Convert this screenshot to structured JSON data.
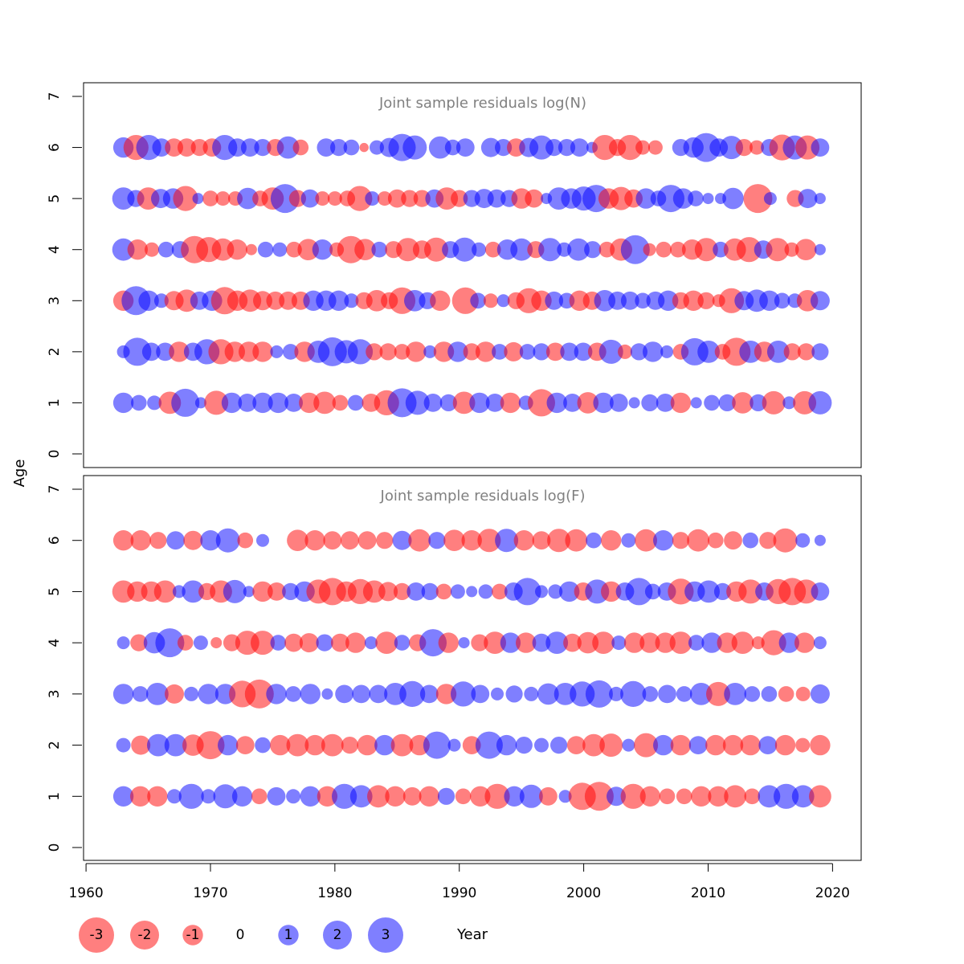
{
  "chart_data": {
    "type": "scatter",
    "y_axis_label": "Age",
    "x_axis_label": "Year",
    "x_ticks": [
      1960,
      1970,
      1980,
      1990,
      2000,
      2010,
      2020
    ],
    "y_ticks": [
      0,
      1,
      2,
      3,
      4,
      5,
      6,
      7
    ],
    "x_range": [
      1959.8,
      2022.3
    ],
    "y_range": [
      -0.3,
      7.3
    ],
    "colors": {
      "negative": "#ff0000",
      "positive": "#0000ff",
      "opacity": 0.5
    },
    "panels": [
      {
        "title": "Joint sample residuals log(N)",
        "ages": [
          1,
          2,
          3,
          4,
          5,
          6
        ],
        "years": [
          1963,
          2019
        ],
        "residuals": {
          "6": [
            1.0,
            -1.5,
            1.5,
            0.8,
            -0.8,
            -0.8,
            -0.7,
            -0.8,
            1.5,
            0.8,
            0.8,
            0.7,
            -0.7,
            1.2,
            -0.6,
            0.0,
            0.8,
            0.7,
            0.6,
            -0.2,
            0.5,
            0.9,
            1.8,
            1.4,
            0.0,
            1.2,
            0.6,
            0.8,
            0.0,
            0.9,
            0.7,
            -0.8,
            0.9,
            1.4,
            0.7,
            0.7,
            0.8,
            0.3,
            -1.5,
            -0.7,
            -1.5,
            -0.5,
            -0.5,
            0.0,
            0.7,
            1.0,
            2.0,
            0.8,
            1.3,
            -0.7,
            -0.5,
            0.7,
            -1.6,
            1.4,
            -1.4,
            0.8
          ],
          "5": [
            1.2,
            0.7,
            -1.2,
            0.9,
            1.0,
            -1.5,
            0.3,
            -0.6,
            -0.5,
            -0.5,
            1.1,
            -0.6,
            -1.2,
            2.0,
            -0.7,
            0.8,
            -0.5,
            -0.5,
            -0.6,
            -1.5,
            0.5,
            -0.5,
            -0.8,
            -0.7,
            -0.7,
            0.8,
            -1.2,
            -0.7,
            0.7,
            0.9,
            0.8,
            0.7,
            -1.0,
            -0.8,
            0.3,
            1.2,
            1.0,
            1.4,
            1.8,
            -1.0,
            -1.3,
            -0.8,
            1.0,
            0.6,
            1.8,
            1.0,
            0.6,
            0.3,
            0.3,
            1.1,
            0.0,
            -2.0,
            0.4,
            0.0,
            -0.7,
            0.9,
            0.3
          ],
          "4": [
            1.2,
            -1.0,
            -0.5,
            0.6,
            0.7,
            -1.8,
            -1.5,
            -1.2,
            -1.0,
            -0.3,
            0.6,
            0.5,
            -0.6,
            -1.1,
            1.0,
            -0.5,
            -1.8,
            -1.1,
            0.6,
            -0.7,
            -1.3,
            -0.8,
            -1.4,
            0.7,
            1.4,
            0.5,
            -0.6,
            1.0,
            1.2,
            -0.7,
            1.3,
            0.5,
            1.2,
            0.7,
            -0.6,
            -1.2,
            2.0,
            -0.4,
            -0.6,
            -0.6,
            -1.0,
            -1.3,
            0.6,
            -1.2,
            -1.5,
            0.8,
            -1.3,
            -0.5,
            -1.1,
            0.3
          ],
          "3": [
            -1.0,
            2.0,
            1.0,
            0.5,
            -0.9,
            -1.2,
            0.8,
            1.0,
            -1.8,
            -1.0,
            -1.2,
            -0.9,
            -0.8,
            -0.8,
            -0.8,
            1.0,
            1.0,
            1.0,
            0.5,
            -0.7,
            -1.1,
            -0.7,
            -1.7,
            1.1,
            0.7,
            -1.0,
            0.0,
            -1.7,
            0.6,
            -0.5,
            0.4,
            -0.7,
            -1.5,
            -1.0,
            0.8,
            0.6,
            -1.0,
            -0.8,
            1.1,
            0.8,
            0.8,
            0.6,
            0.8,
            1.0,
            -0.7,
            -1.0,
            -0.7,
            -0.4,
            -1.5,
            0.9,
            1.2,
            1.0,
            0.6,
            0.5,
            -1.1,
            0.9
          ],
          "2": [
            0.4,
            1.9,
            0.8,
            0.8,
            -1.0,
            0.8,
            1.5,
            -1.5,
            -1.0,
            -1.0,
            -1.0,
            0.4,
            0.6,
            -1.0,
            1.2,
            2.0,
            1.3,
            1.5,
            -0.7,
            -0.7,
            -0.6,
            -1.0,
            0.4,
            -1.0,
            1.0,
            -0.7,
            -1.0,
            0.6,
            -0.9,
            0.6,
            0.7,
            -0.8,
            0.8,
            0.8,
            -0.8,
            1.4,
            -0.5,
            0.7,
            1.0,
            0.4,
            -0.6,
            1.8,
            1.2,
            -0.6,
            -1.9,
            1.2,
            -1.0,
            1.2,
            -0.7,
            -0.7,
            0.7
          ],
          "1": [
            1.0,
            0.6,
            0.5,
            -1.2,
            1.9,
            0.3,
            -1.4,
            1.0,
            0.8,
            1.0,
            1.0,
            0.8,
            -1.0,
            -1.2,
            -0.6,
            0.6,
            -0.8,
            -1.5,
            2.0,
            1.4,
            0.8,
            0.7,
            -1.2,
            1.0,
            0.8,
            -1.0,
            0.5,
            -1.8,
            1.0,
            0.8,
            -1.1,
            1.0,
            0.8,
            0.3,
            0.7,
            0.8,
            -1.0,
            0.3,
            0.6,
            0.7,
            -1.1,
            0.7,
            -1.3,
            0.4,
            -1.3,
            1.3
          ]
        }
      },
      {
        "title": "Joint sample residuals log(F)",
        "ages": [
          1,
          2,
          3,
          4,
          5,
          6
        ],
        "years": [
          1963,
          2019
        ],
        "residuals": {
          "6": [
            -1.0,
            -1.0,
            -0.7,
            0.8,
            -0.9,
            1.0,
            1.4,
            -0.6,
            0.4,
            0.0,
            -1.1,
            -1.0,
            -0.8,
            -0.8,
            -0.8,
            -0.7,
            0.9,
            -1.2,
            0.7,
            -1.1,
            -1.0,
            -1.3,
            1.3,
            -1.0,
            -0.8,
            -1.3,
            -1.2,
            0.6,
            -1.0,
            0.5,
            -1.2,
            1.0,
            -0.7,
            -1.2,
            -0.6,
            -0.8,
            0.6,
            -0.7,
            -1.4,
            0.5,
            0.3
          ],
          "5": [
            -1.2,
            -1.0,
            -1.0,
            -1.2,
            0.4,
            1.2,
            -0.7,
            -1.2,
            1.3,
            0.3,
            -1.0,
            -0.8,
            0.7,
            1.0,
            -1.4,
            -1.8,
            -1.0,
            -1.5,
            -1.2,
            -0.9,
            -0.7,
            0.8,
            0.7,
            -0.6,
            0.5,
            0.3,
            0.5,
            -0.6,
            0.8,
            1.8,
            0.4,
            0.5,
            1.0,
            -0.8,
            1.4,
            -1.0,
            0.8,
            1.8,
            0.6,
            0.8,
            -1.6,
            1.0,
            1.2,
            0.7,
            -1.0,
            -1.4,
            0.8,
            -1.5,
            -1.8,
            -1.4,
            0.8
          ],
          "4": [
            0.4,
            -0.7,
            1.1,
            2.0,
            -0.6,
            0.5,
            -0.3,
            -0.7,
            -1.4,
            -1.4,
            0.6,
            -0.8,
            -0.9,
            0.7,
            -0.8,
            -1.0,
            0.4,
            -1.2,
            0.6,
            -0.7,
            1.8,
            -1.0,
            0.3,
            -0.7,
            -1.2,
            1.0,
            -1.0,
            0.8,
            1.2,
            -0.8,
            -1.1,
            -1.2,
            0.5,
            -1.0,
            -1.0,
            -1.0,
            -1.2,
            0.6,
            1.0,
            -1.0,
            -1.2,
            -0.4,
            -1.5,
            1.0,
            -1.0,
            0.4
          ],
          "3": [
            1.0,
            0.6,
            1.2,
            -0.9,
            0.5,
            1.0,
            1.0,
            -1.7,
            -2.0,
            1.0,
            0.6,
            1.0,
            0.3,
            0.8,
            0.8,
            0.8,
            1.2,
            1.6,
            0.8,
            -1.0,
            1.5,
            0.8,
            0.4,
            0.7,
            0.5,
            1.1,
            1.2,
            1.5,
            1.8,
            0.5,
            1.6,
            0.6,
            0.8,
            0.6,
            1.2,
            -1.4,
            1.2,
            0.6,
            0.6,
            -0.6,
            -0.5,
            0.9
          ],
          "2": [
            0.5,
            -0.9,
            1.2,
            1.2,
            -1.1,
            -1.9,
            1.0,
            -0.8,
            0.6,
            -1.0,
            -1.2,
            -1.0,
            -1.2,
            -0.7,
            -1.0,
            1.0,
            -1.2,
            -1.0,
            1.8,
            0.4,
            -0.8,
            1.8,
            1.0,
            0.7,
            0.5,
            0.7,
            -0.8,
            -1.2,
            -1.3,
            0.4,
            -1.4,
            1.0,
            -1.0,
            0.8,
            -1.0,
            -1.0,
            -1.0,
            0.8,
            -1.0,
            -0.5,
            -1.0
          ],
          "1": [
            1.0,
            -1.0,
            -1.0,
            0.5,
            1.5,
            0.5,
            1.4,
            1.0,
            -0.6,
            0.8,
            0.5,
            1.0,
            -1.0,
            1.5,
            1.2,
            -1.2,
            -1.0,
            -0.8,
            -1.0,
            0.7,
            -0.6,
            -1.0,
            -1.5,
            1.0,
            1.3,
            -0.8,
            0.4,
            -1.8,
            -2.0,
            0.9,
            -1.5,
            -1.0,
            -0.6,
            -0.6,
            -1.0,
            -1.0,
            -1.2,
            -0.6,
            1.2,
            1.5,
            1.2,
            -1.2
          ]
        }
      }
    ],
    "legend": [
      {
        "label": "-3",
        "value": -3
      },
      {
        "label": "-2",
        "value": -2
      },
      {
        "label": "-1",
        "value": -1
      },
      {
        "label": "0",
        "value": 0
      },
      {
        "label": "1",
        "value": 1
      },
      {
        "label": "2",
        "value": 2
      },
      {
        "label": "3",
        "value": 3
      }
    ]
  }
}
